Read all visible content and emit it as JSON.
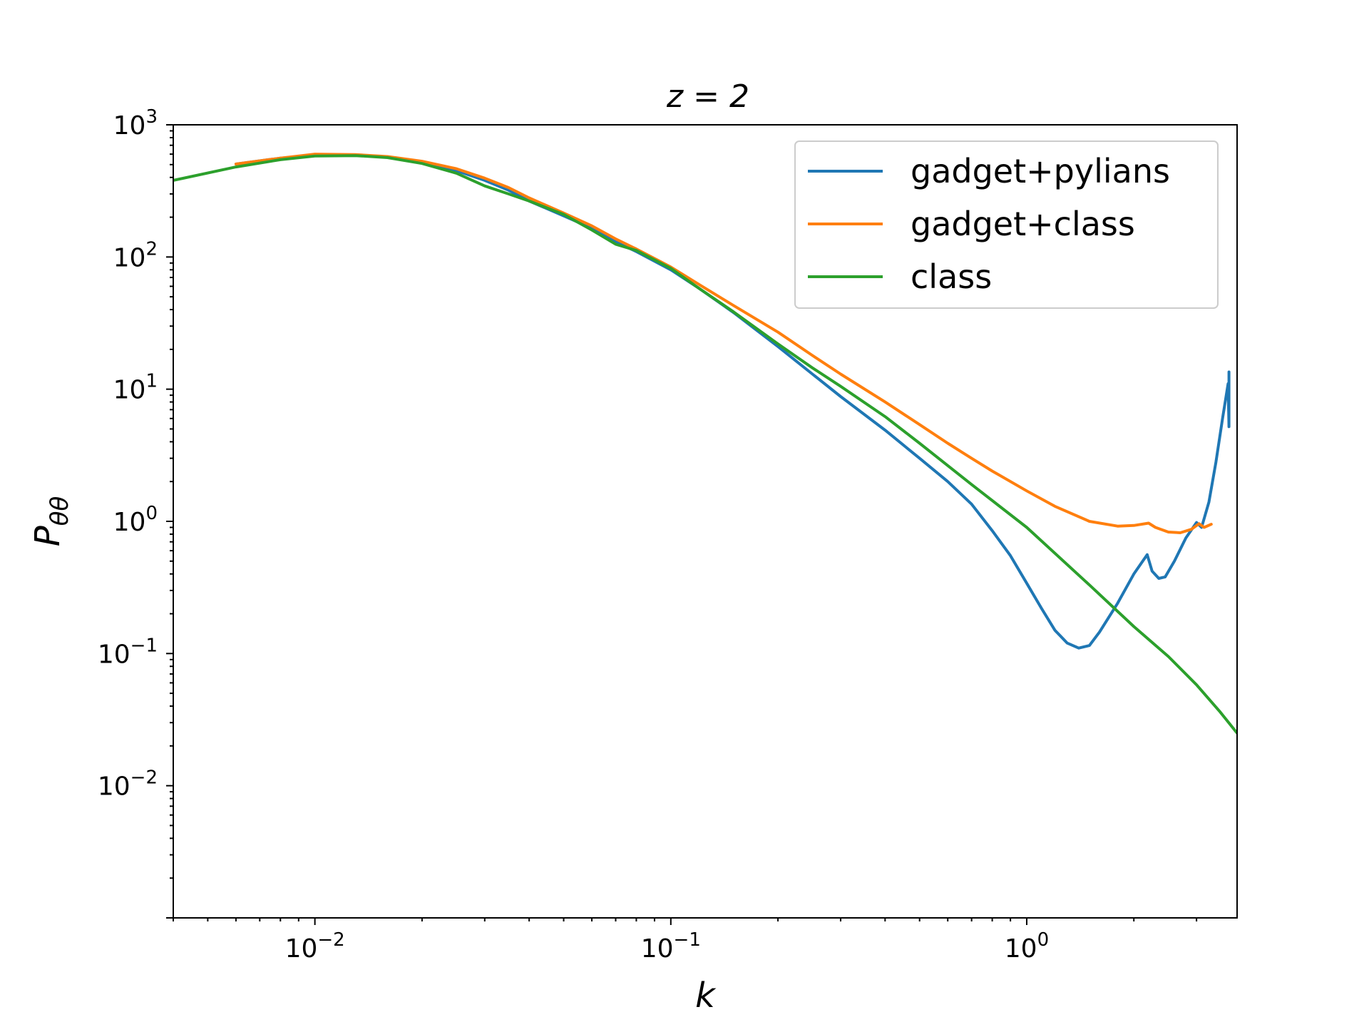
{
  "chart_data": {
    "type": "line",
    "title": "z = 2",
    "xlabel": "k",
    "ylabel": "Pθθ",
    "xscale": "log",
    "yscale": "log",
    "xlim": [
      0.004,
      3.9
    ],
    "ylim": [
      0.001,
      1000
    ],
    "grid": false,
    "legend_position": "top-right",
    "x_ticks": [
      {
        "value": 0.01,
        "base": "10",
        "exp": "−2"
      },
      {
        "value": 0.1,
        "base": "10",
        "exp": "−1"
      },
      {
        "value": 1,
        "base": "10",
        "exp": "0"
      }
    ],
    "y_ticks": [
      {
        "value": 1000,
        "base": "10",
        "exp": "3"
      },
      {
        "value": 100,
        "base": "10",
        "exp": "2"
      },
      {
        "value": 10,
        "base": "10",
        "exp": "1"
      },
      {
        "value": 1,
        "base": "10",
        "exp": "0"
      },
      {
        "value": 0.1,
        "base": "10",
        "exp": "−1"
      },
      {
        "value": 0.01,
        "base": "10",
        "exp": "−2"
      }
    ],
    "series": [
      {
        "name": "gadget+pylians",
        "color": "#1f77b4",
        "points": [
          [
            0.006,
            505
          ],
          [
            0.008,
            560
          ],
          [
            0.01,
            590
          ],
          [
            0.013,
            590
          ],
          [
            0.016,
            568
          ],
          [
            0.02,
            520
          ],
          [
            0.025,
            450
          ],
          [
            0.03,
            380
          ],
          [
            0.035,
            320
          ],
          [
            0.04,
            265
          ],
          [
            0.05,
            205
          ],
          [
            0.06,
            165
          ],
          [
            0.07,
            130
          ],
          [
            0.08,
            110
          ],
          [
            0.1,
            80
          ],
          [
            0.12,
            58
          ],
          [
            0.15,
            38
          ],
          [
            0.2,
            21
          ],
          [
            0.25,
            13
          ],
          [
            0.3,
            8.8
          ],
          [
            0.4,
            4.9
          ],
          [
            0.5,
            3
          ],
          [
            0.6,
            2
          ],
          [
            0.7,
            1.35
          ],
          [
            0.8,
            0.85
          ],
          [
            0.9,
            0.55
          ],
          [
            1.0,
            0.34
          ],
          [
            1.1,
            0.22
          ],
          [
            1.2,
            0.15
          ],
          [
            1.3,
            0.12
          ],
          [
            1.4,
            0.11
          ],
          [
            1.5,
            0.115
          ],
          [
            1.6,
            0.145
          ],
          [
            1.8,
            0.24
          ],
          [
            2.0,
            0.4
          ],
          [
            2.18,
            0.56
          ],
          [
            2.25,
            0.42
          ],
          [
            2.35,
            0.37
          ],
          [
            2.45,
            0.38
          ],
          [
            2.6,
            0.5
          ],
          [
            2.8,
            0.75
          ],
          [
            3.0,
            0.98
          ],
          [
            3.1,
            0.9
          ],
          [
            3.25,
            1.4
          ],
          [
            3.4,
            2.8
          ],
          [
            3.55,
            6
          ],
          [
            3.68,
            11
          ],
          [
            3.7,
            5.2
          ],
          [
            3.7,
            13.5
          ]
        ]
      },
      {
        "name": "gadget+class",
        "color": "#ff7f0e",
        "points": [
          [
            0.006,
            505
          ],
          [
            0.008,
            560
          ],
          [
            0.01,
            600
          ],
          [
            0.013,
            595
          ],
          [
            0.016,
            575
          ],
          [
            0.02,
            530
          ],
          [
            0.025,
            465
          ],
          [
            0.03,
            395
          ],
          [
            0.035,
            335
          ],
          [
            0.04,
            280
          ],
          [
            0.05,
            215
          ],
          [
            0.06,
            172
          ],
          [
            0.07,
            137
          ],
          [
            0.08,
            115
          ],
          [
            0.1,
            84
          ],
          [
            0.12,
            62
          ],
          [
            0.15,
            43
          ],
          [
            0.2,
            27
          ],
          [
            0.25,
            18
          ],
          [
            0.3,
            13
          ],
          [
            0.4,
            8
          ],
          [
            0.5,
            5.4
          ],
          [
            0.6,
            3.9
          ],
          [
            0.7,
            3
          ],
          [
            0.8,
            2.4
          ],
          [
            1.0,
            1.7
          ],
          [
            1.2,
            1.3
          ],
          [
            1.5,
            1.0
          ],
          [
            1.8,
            0.92
          ],
          [
            2.0,
            0.93
          ],
          [
            2.2,
            0.97
          ],
          [
            2.3,
            0.9
          ],
          [
            2.5,
            0.83
          ],
          [
            2.7,
            0.82
          ],
          [
            2.9,
            0.87
          ],
          [
            3.05,
            0.96
          ],
          [
            3.15,
            0.9
          ],
          [
            3.3,
            0.95
          ]
        ]
      },
      {
        "name": "class",
        "color": "#2ca02c",
        "points": [
          [
            0.004,
            380
          ],
          [
            0.006,
            480
          ],
          [
            0.008,
            545
          ],
          [
            0.01,
            580
          ],
          [
            0.013,
            585
          ],
          [
            0.016,
            565
          ],
          [
            0.02,
            510
          ],
          [
            0.025,
            430
          ],
          [
            0.03,
            345
          ],
          [
            0.035,
            300
          ],
          [
            0.04,
            265
          ],
          [
            0.05,
            210
          ],
          [
            0.06,
            160
          ],
          [
            0.07,
            125
          ],
          [
            0.08,
            112
          ],
          [
            0.1,
            82
          ],
          [
            0.12,
            58
          ],
          [
            0.15,
            38.5
          ],
          [
            0.2,
            22
          ],
          [
            0.25,
            14.5
          ],
          [
            0.3,
            10.5
          ],
          [
            0.4,
            6.2
          ],
          [
            0.5,
            3.9
          ],
          [
            0.7,
            1.9
          ],
          [
            1.0,
            0.9
          ],
          [
            1.5,
            0.33
          ],
          [
            2.0,
            0.16
          ],
          [
            2.5,
            0.095
          ],
          [
            3.0,
            0.058
          ],
          [
            3.5,
            0.036
          ],
          [
            3.9,
            0.025
          ]
        ]
      }
    ]
  }
}
